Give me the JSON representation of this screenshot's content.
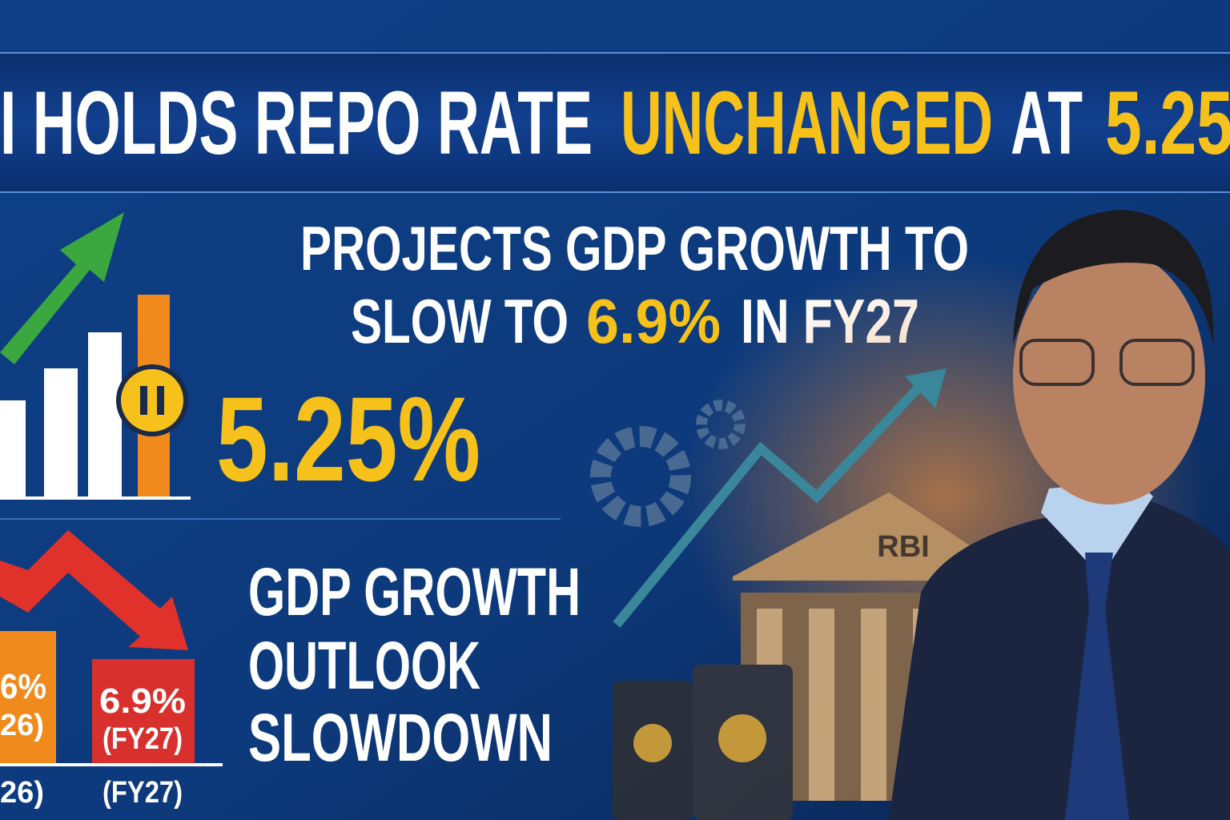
{
  "headline": {
    "part1": "I HOLDS REPO RATE",
    "highlight": "UNCHANGED",
    "part2": "AT",
    "rate": "5.25"
  },
  "subheadline": {
    "line1": "PROJECTS GDP GROWTH TO",
    "line2_start": "SLOW TO",
    "line2_highlight": "6.9%",
    "line2_end": "IN FY27"
  },
  "repo_rate": "5.25%",
  "outlook": {
    "line1": "GDP GROWTH",
    "line2": "OUTLOOK",
    "line3": "SLOWDOWN"
  },
  "growth_bars": [
    {
      "value_label": "6%",
      "period_label": "26)",
      "axis_label": "26)"
    },
    {
      "value_label": "6.9%",
      "period_label": "(FY27)",
      "axis_label": "(FY27)"
    }
  ],
  "building_label": "RBI"
}
